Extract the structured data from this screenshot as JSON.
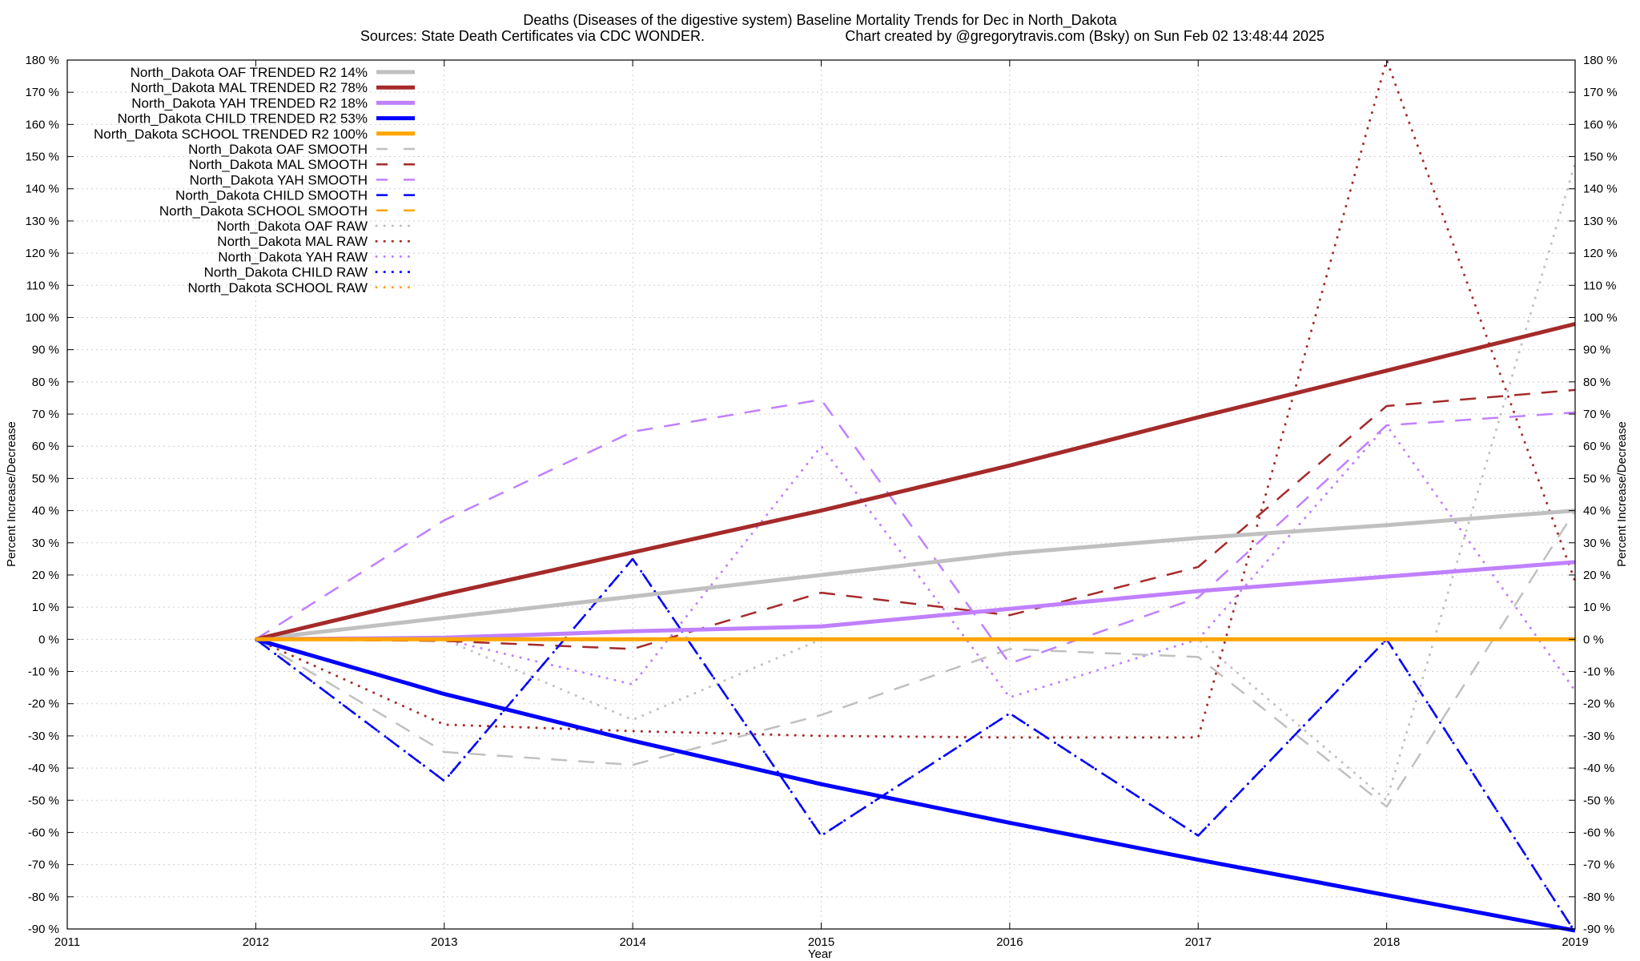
{
  "chart_data": {
    "type": "line",
    "title": "Deaths (Diseases of the digestive system)  Baseline Mortality Trends for Dec in North_Dakota",
    "subtitle_left": "Sources: State Death Certificates via CDC WONDER.",
    "subtitle_right": "Chart created by @gregorytravis.com (Bsky) on Sun Feb 02 13:48:44 2025",
    "xlabel": "Year",
    "ylabel_left": "Percent Increase/Decrease",
    "ylabel_right": "Percent Increase/Decrease",
    "xlim": [
      2011,
      2019
    ],
    "ylim": [
      -90,
      180
    ],
    "x_ticks": [
      2011,
      2012,
      2013,
      2014,
      2015,
      2016,
      2017,
      2018,
      2019
    ],
    "x_tick_labels": [
      "2011",
      "2012",
      "2013",
      "2014",
      "2015",
      "2016",
      "2017",
      "2018",
      "2019"
    ],
    "y_ticks": [
      180,
      170,
      160,
      150,
      140,
      130,
      120,
      110,
      100,
      90,
      80,
      70,
      60,
      50,
      40,
      30,
      20,
      10,
      0,
      -10,
      -20,
      -30,
      -40,
      -50,
      -60,
      -70,
      -80,
      -90
    ],
    "y_tick_labels": [
      "180 %",
      "170 %",
      "160 %",
      "150 %",
      "140 %",
      "130 %",
      "120 %",
      "110 %",
      "100 %",
      "90 %",
      "80 %",
      "70 %",
      "60 %",
      "50 %",
      "40 %",
      "30 %",
      "20 %",
      "10 %",
      "0 %",
      "-10 %",
      "-20 %",
      "-30 %",
      "-40 %",
      "-50 %",
      "-60 %",
      "-70 %",
      "-80 %",
      "-90 %"
    ],
    "grid": true,
    "legend_position": "top-left",
    "x": [
      2012,
      2013,
      2014,
      2015,
      2016,
      2017,
      2018,
      2019
    ],
    "series": [
      {
        "name": "North_Dakota OAF TRENDED R2  14%",
        "style": "solid",
        "color": "#c0c0c0",
        "values": [
          0,
          6.7,
          13.3,
          20,
          26.7,
          31.5,
          35.5,
          40
        ]
      },
      {
        "name": "North_Dakota MAL TRENDED R2  78%",
        "style": "solid",
        "color": "#a52a2a",
        "values": [
          0,
          14,
          27,
          40,
          54,
          69,
          83.5,
          98
        ]
      },
      {
        "name": "North_Dakota YAH TRENDED R2  18%",
        "style": "solid",
        "color": "#c080ff",
        "values": [
          0,
          0.5,
          2.5,
          4,
          9.5,
          15,
          19.5,
          24
        ]
      },
      {
        "name": "North_Dakota CHILD TRENDED R2  53%",
        "style": "solid",
        "color": "#0000ff",
        "values": [
          0,
          -17,
          -31.5,
          -45,
          -57,
          -68.5,
          -79.5,
          -90.5
        ]
      },
      {
        "name": "North_Dakota SCHOOL TRENDED R2 100%",
        "style": "solid",
        "color": "#ffa500",
        "values": [
          0,
          0,
          0,
          0,
          0,
          0,
          0,
          0
        ]
      },
      {
        "name": "North_Dakota OAF SMOOTH",
        "style": "dashed",
        "color": "#c0c0c0",
        "values": [
          0,
          -35,
          -39,
          -23.5,
          -3,
          -5.5,
          -52,
          40
        ]
      },
      {
        "name": "North_Dakota MAL SMOOTH",
        "style": "dashed",
        "color": "#a52a2a",
        "values": [
          0,
          -0.5,
          -3,
          14.5,
          7.5,
          22.5,
          72.5,
          77.5
        ]
      },
      {
        "name": "North_Dakota YAH SMOOTH",
        "style": "dashed",
        "color": "#c080ff",
        "values": [
          0,
          37,
          64.5,
          74.5,
          -7.5,
          13,
          66.5,
          70.5
        ]
      },
      {
        "name": "North_Dakota CHILD SMOOTH",
        "style": "dashed",
        "color": "#0000ff",
        "values": [
          0,
          -44,
          25,
          -61,
          -23,
          -61,
          0,
          -91
        ]
      },
      {
        "name": "North_Dakota SCHOOL SMOOTH",
        "style": "dashed",
        "color": "#ffa500",
        "values": [
          0,
          0,
          0,
          0,
          0,
          0,
          0,
          0
        ]
      },
      {
        "name": "North_Dakota OAF RAW",
        "style": "dotted",
        "color": "#c0c0c0",
        "values": [
          0,
          0,
          -25,
          0,
          0,
          0,
          -50,
          148
        ]
      },
      {
        "name": "North_Dakota MAL RAW",
        "style": "dotted",
        "color": "#a52a2a",
        "values": [
          0,
          -26.5,
          -28.5,
          -30,
          -30.5,
          -30.5,
          180,
          18
        ]
      },
      {
        "name": "North_Dakota YAH RAW",
        "style": "dotted",
        "color": "#c080ff",
        "values": [
          0,
          0,
          -14,
          60,
          -18,
          0,
          66.5,
          -16
        ]
      },
      {
        "name": "North_Dakota CHILD RAW",
        "style": "dotted",
        "color": "#0000ff",
        "values": [
          0,
          -44,
          25,
          -61,
          -23,
          -61,
          0,
          -91
        ]
      },
      {
        "name": "North_Dakota SCHOOL RAW",
        "style": "dotted",
        "color": "#ffa500",
        "values": [
          0,
          0,
          0,
          0,
          0,
          0,
          0,
          0
        ]
      }
    ]
  }
}
